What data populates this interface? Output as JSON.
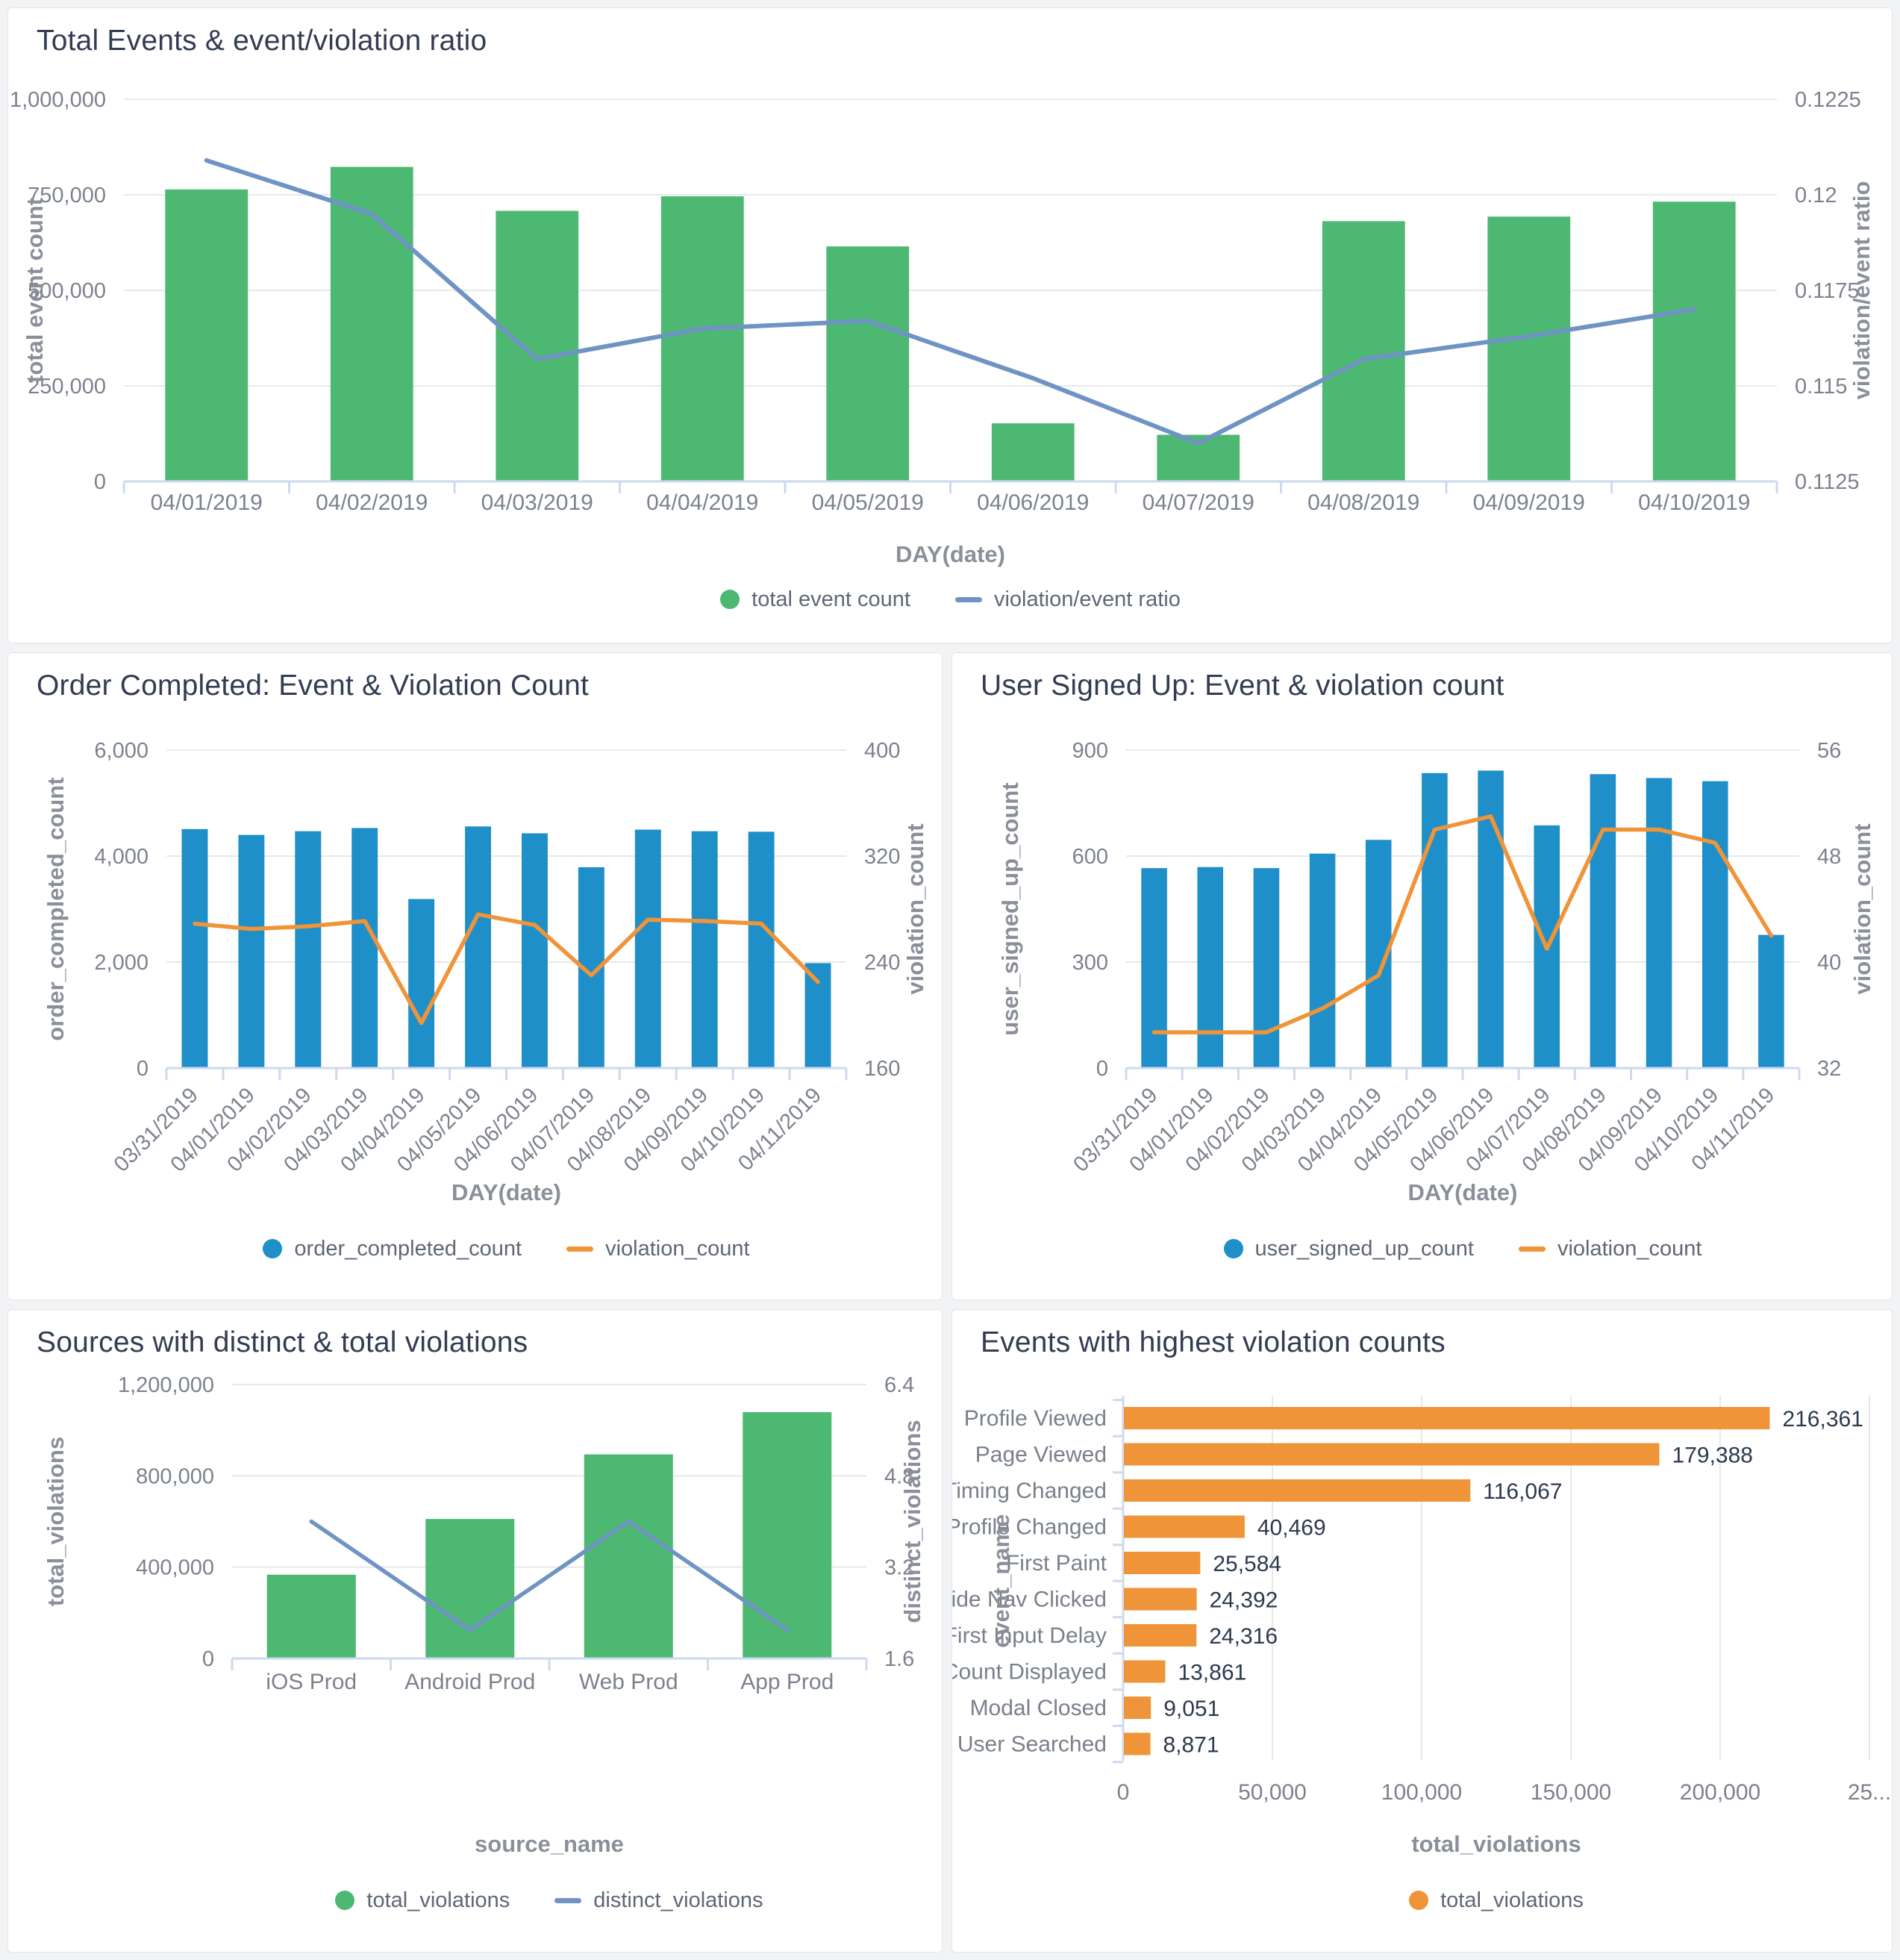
{
  "colors": {
    "green": "#4cb872",
    "blue": "#1f8fc9",
    "orange": "#ef9438",
    "steel": "#6f94c3",
    "title_text": "#333c52",
    "axis_name_text": "#8a8f99",
    "tick_text": "#7c828d",
    "value_label_text": "#2c3a4e",
    "grid_line": "#e7e8ea",
    "axis_line": "#ccd9ef",
    "card_bg": "#ffffff",
    "page_bg": "#f2f3f5"
  },
  "chart_data": [
    {
      "id": "total-events",
      "title": "Total Events & event/violation ratio",
      "type": "bar+line",
      "x_label": "DAY(date)",
      "categories": [
        "04/01/2019",
        "04/02/2019",
        "04/03/2019",
        "04/04/2019",
        "04/05/2019",
        "04/06/2019",
        "04/07/2019",
        "04/08/2019",
        "04/09/2019",
        "04/10/2019"
      ],
      "series": [
        {
          "name": "total event count",
          "type": "bar",
          "axis": "left",
          "color": "green",
          "values": [
            764000,
            823000,
            708000,
            746000,
            615000,
            152000,
            122000,
            681000,
            693000,
            732000
          ]
        },
        {
          "name": "violation/event ratio",
          "type": "line",
          "axis": "right",
          "color": "steel",
          "values": [
            0.1209,
            0.1195,
            0.1157,
            0.1165,
            0.1167,
            0.1152,
            0.1135,
            0.1157,
            0.1163,
            0.117
          ]
        }
      ],
      "left_axis": {
        "label": "total event count",
        "min": 0,
        "max": 1000000,
        "ticks": [
          0,
          250000,
          500000,
          750000,
          1000000
        ],
        "tick_labels": [
          "0",
          "250,000",
          "500,000",
          "750,000",
          "1,000,000"
        ]
      },
      "right_axis": {
        "label": "violation/event ratio",
        "min": 0.1125,
        "max": 0.1225,
        "ticks": [
          0.1125,
          0.115,
          0.1175,
          0.12,
          0.1225
        ],
        "tick_labels": [
          "0.1125",
          "0.115",
          "0.1175",
          "0.12",
          "0.1225"
        ]
      },
      "rotate_x_labels": false,
      "legend": [
        {
          "label": "total event count",
          "marker": "dot",
          "color": "green"
        },
        {
          "label": "violation/event ratio",
          "marker": "line",
          "color": "steel"
        }
      ]
    },
    {
      "id": "order-completed",
      "title": "Order Completed: Event & Violation Count",
      "type": "bar+line",
      "x_label": "DAY(date)",
      "categories": [
        "03/31/2019",
        "04/01/2019",
        "04/02/2019",
        "04/03/2019",
        "04/04/2019",
        "04/05/2019",
        "04/06/2019",
        "04/07/2019",
        "04/08/2019",
        "04/09/2019",
        "04/10/2019",
        "04/11/2019"
      ],
      "series": [
        {
          "name": "order_completed_count",
          "type": "bar",
          "axis": "left",
          "color": "blue",
          "values": [
            4510,
            4400,
            4470,
            4530,
            3190,
            4560,
            4430,
            3790,
            4500,
            4470,
            4460,
            1980
          ]
        },
        {
          "name": "violation_count",
          "type": "line",
          "axis": "right",
          "color": "orange",
          "values": [
            269,
            265,
            267,
            271,
            194,
            276,
            268,
            230,
            272,
            271,
            269,
            225
          ]
        }
      ],
      "left_axis": {
        "label": "order_completed_count",
        "min": 0,
        "max": 6000,
        "ticks": [
          0,
          2000,
          4000,
          6000
        ],
        "tick_labels": [
          "0",
          "2,000",
          "4,000",
          "6,000"
        ]
      },
      "right_axis": {
        "label": "violation_count",
        "min": 160,
        "max": 400,
        "ticks": [
          160,
          240,
          320,
          400
        ],
        "tick_labels": [
          "160",
          "240",
          "320",
          "400"
        ]
      },
      "rotate_x_labels": true,
      "legend": [
        {
          "label": "order_completed_count",
          "marker": "dot",
          "color": "blue"
        },
        {
          "label": "violation_count",
          "marker": "line",
          "color": "orange"
        }
      ]
    },
    {
      "id": "user-signed-up",
      "title": "User Signed Up: Event & violation count",
      "type": "bar+line",
      "x_label": "DAY(date)",
      "categories": [
        "03/31/2019",
        "04/01/2019",
        "04/02/2019",
        "04/03/2019",
        "04/04/2019",
        "04/05/2019",
        "04/06/2019",
        "04/07/2019",
        "04/08/2019",
        "04/09/2019",
        "04/10/2019",
        "04/11/2019"
      ],
      "series": [
        {
          "name": "user_signed_up_count",
          "type": "bar",
          "axis": "left",
          "color": "blue",
          "values": [
            566,
            569,
            566,
            607,
            646,
            835,
            842,
            687,
            832,
            821,
            812,
            377
          ]
        },
        {
          "name": "violation_count",
          "type": "line",
          "axis": "right",
          "color": "orange",
          "values": [
            34.7,
            34.7,
            34.7,
            36.5,
            39,
            50,
            51,
            41,
            50,
            50,
            49,
            42
          ]
        }
      ],
      "left_axis": {
        "label": "user_signed_up_count",
        "min": 0,
        "max": 900,
        "ticks": [
          0,
          300,
          600,
          900
        ],
        "tick_labels": [
          "0",
          "300",
          "600",
          "900"
        ]
      },
      "right_axis": {
        "label": "violation_count",
        "min": 32,
        "max": 56,
        "ticks": [
          32,
          40,
          48,
          56
        ],
        "tick_labels": [
          "32",
          "40",
          "48",
          "56"
        ]
      },
      "rotate_x_labels": true,
      "legend": [
        {
          "label": "user_signed_up_count",
          "marker": "dot",
          "color": "blue"
        },
        {
          "label": "violation_count",
          "marker": "line",
          "color": "orange"
        }
      ]
    },
    {
      "id": "sources-violations",
      "title": "Sources with distinct & total violations",
      "type": "bar+line",
      "x_label": "source_name",
      "categories": [
        "iOS Prod",
        "Android Prod",
        "Web Prod",
        "App Prod"
      ],
      "series": [
        {
          "name": "total_violations",
          "type": "bar",
          "axis": "left",
          "color": "green",
          "values": [
            367000,
            611000,
            894000,
            1079000
          ]
        },
        {
          "name": "distinct_violations",
          "type": "line",
          "axis": "right",
          "color": "steel",
          "values": [
            4.0,
            2.1,
            4.0,
            2.1
          ]
        }
      ],
      "left_axis": {
        "label": "total_violations",
        "min": 0,
        "max": 1200000,
        "ticks": [
          0,
          400000,
          800000,
          1200000
        ],
        "tick_labels": [
          "0",
          "400,000",
          "800,000",
          "1,200,000"
        ]
      },
      "right_axis": {
        "label": "distinct_violations",
        "min": 1.6,
        "max": 6.4,
        "ticks": [
          1.6,
          3.2,
          4.8,
          6.4
        ],
        "tick_labels": [
          "1.6",
          "3.2",
          "4.8",
          "6.4"
        ]
      },
      "rotate_x_labels": false,
      "legend": [
        {
          "label": "total_violations",
          "marker": "dot",
          "color": "green"
        },
        {
          "label": "distinct_violations",
          "marker": "line",
          "color": "steel"
        }
      ]
    },
    {
      "id": "highest-violations",
      "title": "Events with highest violation counts",
      "type": "hbar",
      "x_label": "total_violations",
      "y_label": "event_name",
      "categories": [
        "Profile Viewed",
        "Page Viewed",
        "App Timing Changed",
        "Profile Changed",
        "First Paint",
        "Side Nav Clicked",
        "First Input Delay",
        "Unread Notification Count Displayed",
        "Modal Closed",
        "User Searched"
      ],
      "values": [
        216361,
        179388,
        116067,
        40469,
        25584,
        24392,
        24316,
        13861,
        9051,
        8871
      ],
      "value_labels": [
        "216,361",
        "179,388",
        "116,067",
        "40,469",
        "25,584",
        "24,392",
        "24,316",
        "13,861",
        "9,051",
        "8,871"
      ],
      "x_axis": {
        "min": 0,
        "max": 250000,
        "ticks": [
          0,
          50000,
          100000,
          150000,
          200000,
          250000
        ],
        "tick_labels": [
          "0",
          "50,000",
          "100,000",
          "150,000",
          "200,000",
          "25..."
        ]
      },
      "bar_color": "orange",
      "legend": [
        {
          "label": "total_violations",
          "marker": "dot",
          "color": "orange"
        }
      ]
    }
  ]
}
